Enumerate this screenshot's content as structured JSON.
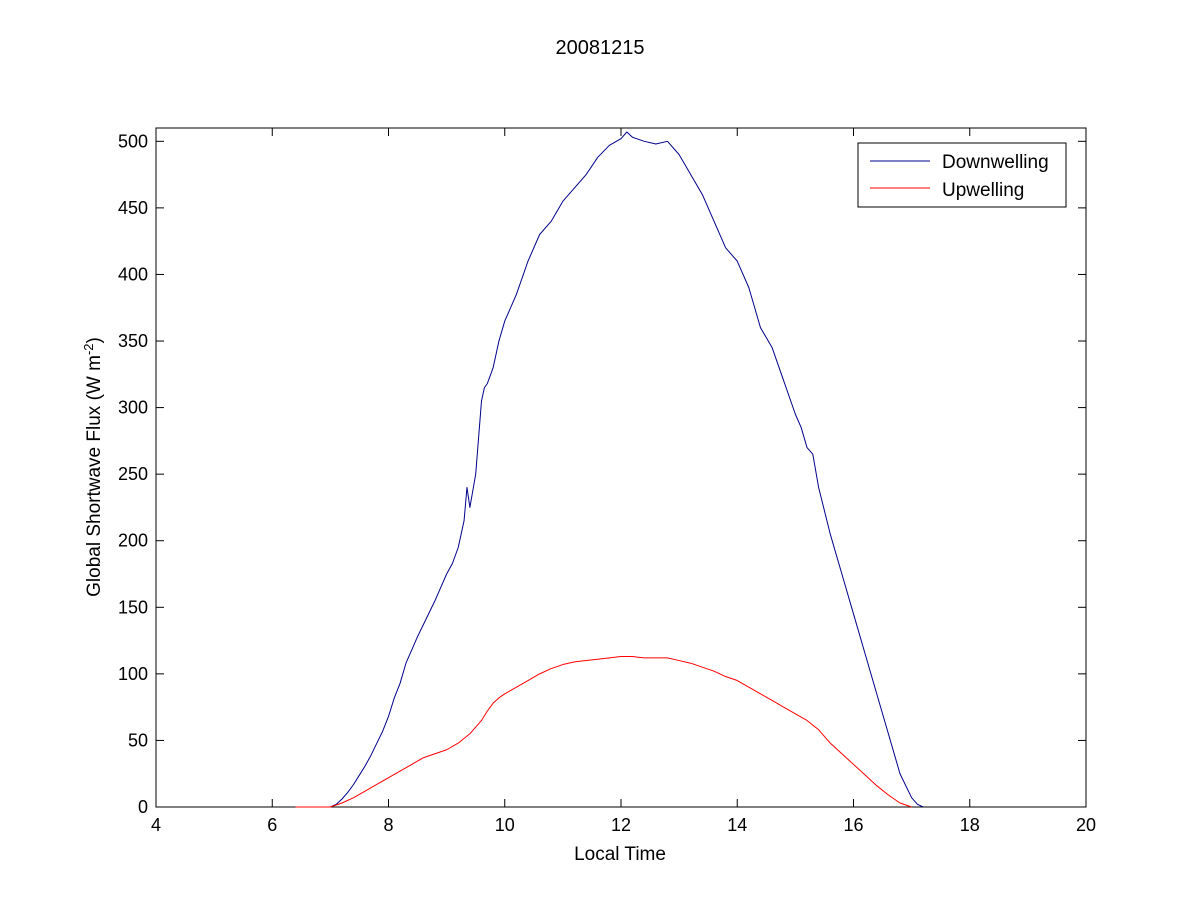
{
  "chart_data": {
    "type": "line",
    "title": "20081215",
    "xlabel": "Local Time",
    "ylabel": {
      "main": "Global Shortwave Flux (W m",
      "sup1": "-2",
      "close": ")"
    },
    "xlim": [
      4,
      20
    ],
    "ylim": [
      0,
      510
    ],
    "xticks": [
      4,
      6,
      8,
      10,
      12,
      14,
      16,
      18,
      20
    ],
    "yticks": [
      0,
      50,
      100,
      150,
      200,
      250,
      300,
      350,
      400,
      450,
      500
    ],
    "grid": false,
    "legend_position": "top-right",
    "series": [
      {
        "name": "Downwelling",
        "color": "#00008b",
        "x": [
          6.4,
          6.7,
          7.0,
          7.1,
          7.2,
          7.3,
          7.4,
          7.5,
          7.6,
          7.7,
          7.8,
          7.9,
          8.0,
          8.1,
          8.2,
          8.3,
          8.4,
          8.5,
          8.6,
          8.7,
          8.8,
          8.9,
          9.0,
          9.1,
          9.2,
          9.3,
          9.35,
          9.4,
          9.5,
          9.6,
          9.65,
          9.7,
          9.8,
          9.9,
          10.0,
          10.2,
          10.4,
          10.6,
          10.8,
          11.0,
          11.2,
          11.4,
          11.6,
          11.8,
          12.0,
          12.1,
          12.2,
          12.4,
          12.6,
          12.8,
          13.0,
          13.2,
          13.4,
          13.6,
          13.8,
          14.0,
          14.2,
          14.4,
          14.6,
          14.8,
          15.0,
          15.1,
          15.2,
          15.3,
          15.4,
          15.6,
          15.8,
          16.0,
          16.2,
          16.4,
          16.6,
          16.8,
          17.0,
          17.1,
          17.2
        ],
        "y": [
          0,
          0,
          0,
          2,
          6,
          11,
          17,
          24,
          31,
          39,
          48,
          57,
          68,
          82,
          93,
          108,
          118,
          128,
          137,
          146,
          155,
          165,
          175,
          183,
          195,
          215,
          240,
          225,
          250,
          305,
          315,
          318,
          330,
          350,
          365,
          385,
          410,
          430,
          440,
          455,
          465,
          475,
          488,
          497,
          502,
          507,
          503,
          500,
          498,
          500,
          490,
          475,
          460,
          440,
          420,
          410,
          390,
          360,
          345,
          320,
          295,
          285,
          270,
          265,
          240,
          205,
          175,
          145,
          115,
          85,
          55,
          25,
          7,
          2,
          0
        ]
      },
      {
        "name": "Upwelling",
        "color": "#ff0000",
        "x": [
          6.4,
          6.7,
          7.0,
          7.2,
          7.4,
          7.6,
          7.8,
          8.0,
          8.2,
          8.4,
          8.6,
          8.8,
          9.0,
          9.2,
          9.4,
          9.6,
          9.7,
          9.8,
          9.9,
          10.0,
          10.2,
          10.4,
          10.6,
          10.8,
          11.0,
          11.2,
          11.4,
          11.6,
          11.8,
          12.0,
          12.2,
          12.4,
          12.6,
          12.8,
          13.0,
          13.2,
          13.4,
          13.6,
          13.8,
          14.0,
          14.2,
          14.4,
          14.6,
          14.8,
          15.0,
          15.2,
          15.4,
          15.6,
          15.8,
          16.0,
          16.2,
          16.4,
          16.6,
          16.8,
          17.0
        ],
        "y": [
          0,
          0,
          0,
          3,
          7,
          12,
          17,
          22,
          27,
          32,
          37,
          40,
          43,
          48,
          55,
          65,
          72,
          78,
          82,
          85,
          90,
          95,
          100,
          104,
          107,
          109,
          110,
          111,
          112,
          113,
          113,
          112,
          112,
          112,
          110,
          108,
          105,
          102,
          98,
          95,
          90,
          85,
          80,
          75,
          70,
          65,
          58,
          48,
          40,
          32,
          24,
          16,
          9,
          3,
          0
        ]
      }
    ]
  }
}
